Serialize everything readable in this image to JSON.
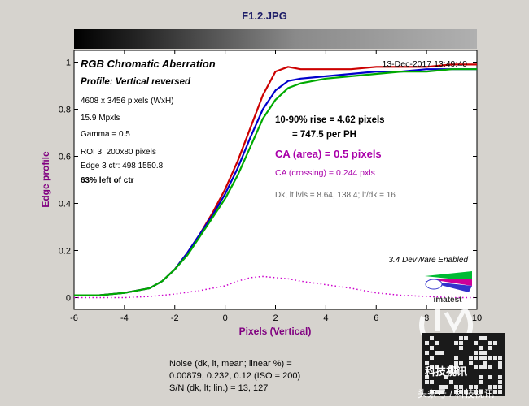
{
  "window_title": "F1.2.JPG",
  "chart_data": {
    "type": "line",
    "title": "RGB Chromatic Aberration",
    "profile": "Profile: Vertical reversed",
    "timestamp": "13-Dec-2017 13:49:40",
    "info_lines": [
      "4608 x 3456 pixels (WxH)",
      "15.9 Mpxls",
      "Gamma = 0.5",
      "ROI 3: 200x80 pixels",
      "Edge 3 ctr: 498  1550.8"
    ],
    "info_bold": "63% left of ctr",
    "rise_line1": "10-90% rise = 4.62 pixels",
    "rise_line2": "= 747.5 per PH",
    "ca_area": "CA (area) = 0.5 pixels",
    "ca_crossing": "CA (crossing) = 0.244 pxls",
    "dk_line": "Dk, lt lvls = 8.64, 138.4;  lt/dk = 16",
    "devware": "3.4  DevWare Enabled",
    "xlabel": "Pixels (Vertical)",
    "ylabel": "Edge profile",
    "xlim": [
      -6,
      10
    ],
    "ylim": [
      -0.05,
      1.05
    ],
    "x_ticks": [
      -6,
      -4,
      -2,
      0,
      2,
      4,
      6,
      8,
      10
    ],
    "y_ticks": [
      0,
      0.2,
      0.4,
      0.6,
      0.8,
      1
    ],
    "y_tick_labels": [
      "0",
      "0.2",
      "0.4",
      "0.6",
      "0.8",
      "1"
    ],
    "grid": false,
    "colors": {
      "red": "#cc0000",
      "green": "#00aa00",
      "blue": "#0000cc",
      "ca": "#cc00cc",
      "axis_label": "#800080"
    },
    "series": [
      {
        "color": "red",
        "x": [
          -6,
          -5,
          -4,
          -3,
          -2.5,
          -2,
          -1.5,
          -1,
          -0.5,
          0,
          0.5,
          1,
          1.5,
          2,
          2.5,
          3,
          4,
          5,
          6,
          7,
          8,
          9,
          10
        ],
        "y": [
          0.01,
          0.01,
          0.02,
          0.04,
          0.07,
          0.12,
          0.19,
          0.27,
          0.36,
          0.46,
          0.58,
          0.72,
          0.86,
          0.96,
          0.98,
          0.97,
          0.97,
          0.97,
          0.98,
          0.98,
          0.98,
          0.99,
          0.99
        ]
      },
      {
        "color": "blue",
        "x": [
          -6,
          -5,
          -4,
          -3,
          -2.5,
          -2,
          -1.5,
          -1,
          -0.5,
          0,
          0.5,
          1,
          1.5,
          2,
          2.5,
          3,
          4,
          5,
          6,
          7,
          8,
          9,
          10
        ],
        "y": [
          0.01,
          0.01,
          0.02,
          0.04,
          0.07,
          0.12,
          0.19,
          0.27,
          0.35,
          0.44,
          0.55,
          0.68,
          0.8,
          0.88,
          0.92,
          0.93,
          0.94,
          0.95,
          0.96,
          0.96,
          0.97,
          0.97,
          0.97
        ]
      },
      {
        "color": "green",
        "x": [
          -6,
          -5,
          -4,
          -3,
          -2.5,
          -2,
          -1.5,
          -1,
          -0.5,
          0,
          0.5,
          1,
          1.5,
          2,
          2.5,
          3,
          4,
          5,
          6,
          7,
          8,
          9,
          10
        ],
        "y": [
          0.01,
          0.01,
          0.02,
          0.04,
          0.07,
          0.12,
          0.18,
          0.26,
          0.34,
          0.42,
          0.52,
          0.64,
          0.76,
          0.84,
          0.89,
          0.91,
          0.93,
          0.94,
          0.95,
          0.96,
          0.96,
          0.97,
          0.97
        ]
      },
      {
        "color": "ca",
        "dotted": true,
        "x": [
          -6,
          -4,
          -3,
          -2,
          -1,
          0,
          0.5,
          1,
          1.5,
          2,
          2.5,
          3,
          4,
          5,
          6,
          7,
          8,
          9,
          10
        ],
        "y": [
          0.0,
          0.0,
          0.005,
          0.015,
          0.03,
          0.05,
          0.07,
          0.085,
          0.09,
          0.085,
          0.08,
          0.07,
          0.055,
          0.04,
          0.02,
          0.01,
          0.005,
          0.0,
          0.0
        ]
      }
    ]
  },
  "noise_lines": [
    "Noise (dk, lt, mean; linear %) =",
    "0.00879,  0.232,  0.12  (ISO = 200)",
    "S/N (dk, lt; lin.) = 13,  127"
  ],
  "watermark_cn": "科技视讯",
  "watermark_credit": "头条号 / 科技视讯"
}
